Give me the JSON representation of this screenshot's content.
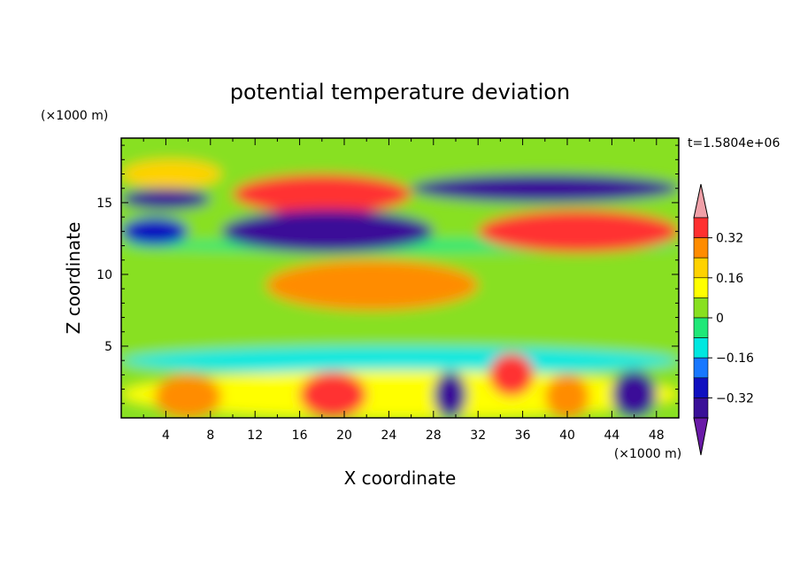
{
  "chart_data": {
    "type": "heatmap",
    "title": "potential temperature deviation",
    "xlabel": "X coordinate",
    "ylabel": "Z coordinate",
    "x_unit": "(×1000 m)",
    "y_unit": "(×1000 m)",
    "time_label": "t=1.5804e+06",
    "xlim": [
      0,
      50
    ],
    "ylim": [
      0,
      19.5
    ],
    "x_ticks": [
      4,
      8,
      12,
      16,
      20,
      24,
      28,
      32,
      36,
      40,
      44,
      48
    ],
    "y_ticks": [
      5,
      10,
      15
    ],
    "colorbar": {
      "levels": [
        -0.4,
        -0.32,
        -0.24,
        -0.16,
        -0.08,
        0,
        0.08,
        0.16,
        0.24,
        0.32,
        0.4
      ],
      "labels": [
        "0.32",
        "0.16",
        "0",
        "−0.16",
        "−0.32"
      ],
      "label_values": [
        0.32,
        0.16,
        0,
        -0.16,
        -0.32
      ],
      "colors_top_to_bottom": [
        "#f0a0a8",
        "#ff3030",
        "#ff8c00",
        "#ffd200",
        "#ffff00",
        "#88e020",
        "#20e878",
        "#00e8e0",
        "#1878ff",
        "#1010c0",
        "#3a1098",
        "#6a1aa8"
      ]
    },
    "regions": [
      {
        "x": [
          0,
          50
        ],
        "y": [
          0,
          19.5
        ],
        "value": 0.02
      },
      {
        "x": [
          0,
          14
        ],
        "y": [
          5.5,
          9.5
        ],
        "value": 0.06
      },
      {
        "x": [
          25,
          50
        ],
        "y": [
          6,
          9
        ],
        "value": 0.06
      },
      {
        "x": [
          0,
          50
        ],
        "y": [
          17.5,
          19.5
        ],
        "value": 0.05
      },
      {
        "x": [
          0,
          50
        ],
        "y": [
          11.5,
          12.5
        ],
        "value": -0.02
      },
      {
        "x": [
          0,
          9
        ],
        "y": [
          16,
          18
        ],
        "value": 0.22
      },
      {
        "x": [
          0,
          8
        ],
        "y": [
          14.5,
          16
        ],
        "value": -0.36
      },
      {
        "x": [
          0,
          6
        ],
        "y": [
          12,
          14
        ],
        "value": -0.3
      },
      {
        "x": [
          10,
          26
        ],
        "y": [
          14.2,
          17
        ],
        "value": 0.36
      },
      {
        "x": [
          9,
          28
        ],
        "y": [
          11.5,
          14.5
        ],
        "value": -0.36
      },
      {
        "x": [
          26,
          50
        ],
        "y": [
          15,
          17
        ],
        "value": -0.36
      },
      {
        "x": [
          32,
          50
        ],
        "y": [
          11.5,
          14.5
        ],
        "value": 0.36
      },
      {
        "x": [
          13,
          32
        ],
        "y": [
          7.5,
          11
        ],
        "value": 0.3
      },
      {
        "x": [
          0,
          50
        ],
        "y": [
          3,
          5
        ],
        "value": -0.1
      },
      {
        "x": [
          0,
          50
        ],
        "y": [
          0,
          3.3
        ],
        "value": 0.15
      },
      {
        "x": [
          3,
          9
        ],
        "y": [
          0,
          3
        ],
        "value": 0.3
      },
      {
        "x": [
          16,
          22
        ],
        "y": [
          0,
          3.2
        ],
        "value": 0.34
      },
      {
        "x": [
          28,
          31
        ],
        "y": [
          0,
          3.2
        ],
        "value": -0.35
      },
      {
        "x": [
          33,
          37
        ],
        "y": [
          1.5,
          4.5
        ],
        "value": 0.36
      },
      {
        "x": [
          38,
          42
        ],
        "y": [
          0,
          3
        ],
        "value": 0.3
      },
      {
        "x": [
          44,
          48
        ],
        "y": [
          0,
          3.3
        ],
        "value": -0.34
      }
    ]
  }
}
